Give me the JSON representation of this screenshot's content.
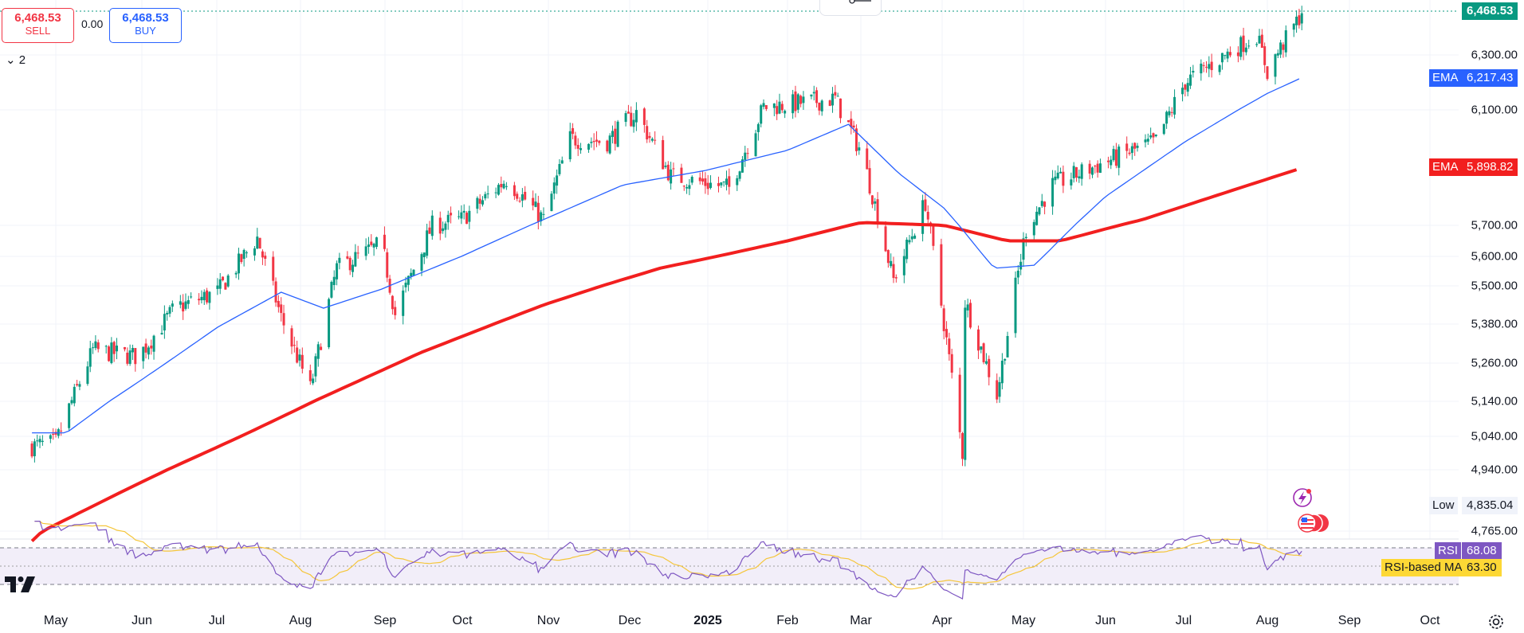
{
  "trade_panel": {
    "sell_price": "6,468.53",
    "sell_label": "SELL",
    "spread": "0.00",
    "buy_price": "6,468.53",
    "buy_label": "BUY",
    "legend_toggle": "2"
  },
  "price_tags": {
    "last_price": "6,468.53",
    "ema_fast_label": "EMA",
    "ema_fast_value": "6,217.43",
    "ema_slow_label": "EMA",
    "ema_slow_value": "5,898.82",
    "low_label": "Low",
    "low_value": "4,835.04",
    "rsi_label": "RSI",
    "rsi_value": "68.08",
    "rsi_ma_label": "RSI-based MA",
    "rsi_ma_value": "63.30"
  },
  "colors": {
    "up": "#089981",
    "down": "#f23645",
    "ema_fast": "#2962ff",
    "ema_slow": "#f21f1f",
    "rsi_line": "#7e57c2",
    "rsi_ma": "#fdd835",
    "rsi_band": "#ede7f6"
  },
  "icons": [
    "crosshair-icon",
    "tradingview-logo-icon",
    "settings-gear-icon",
    "lightning-icon",
    "us-flag-icon"
  ],
  "chart_data": [
    {
      "type": "candlestick",
      "y_axis_ticks": [
        "6,300.00",
        "6,100.00",
        "5,700.00",
        "5,600.00",
        "5,500.00",
        "5,380.00",
        "5,260.00",
        "5,140.00",
        "5,040.00",
        "4,940.00",
        "4,765.00"
      ],
      "x_axis_ticks": [
        "May",
        "Jun",
        "Jul",
        "Aug",
        "Sep",
        "Oct",
        "Nov",
        "Dec",
        "2025",
        "Feb",
        "Mar",
        "Apr",
        "May",
        "Jun",
        "Jul",
        "Aug",
        "Sep",
        "Oct"
      ],
      "ylim": [
        4740,
        6490
      ],
      "series_close_points": [
        {
          "x": "2024-04-22",
          "y": 5010
        },
        {
          "x": "2024-05-01",
          "y": 5020
        },
        {
          "x": "2024-05-15",
          "y": 5300
        },
        {
          "x": "2024-06-01",
          "y": 5280
        },
        {
          "x": "2024-06-15",
          "y": 5430
        },
        {
          "x": "2024-07-01",
          "y": 5480
        },
        {
          "x": "2024-07-16",
          "y": 5660
        },
        {
          "x": "2024-07-25",
          "y": 5400
        },
        {
          "x": "2024-08-05",
          "y": 5180
        },
        {
          "x": "2024-08-15",
          "y": 5560
        },
        {
          "x": "2024-09-01",
          "y": 5640
        },
        {
          "x": "2024-09-06",
          "y": 5410
        },
        {
          "x": "2024-09-20",
          "y": 5700
        },
        {
          "x": "2024-10-01",
          "y": 5720
        },
        {
          "x": "2024-10-18",
          "y": 5860
        },
        {
          "x": "2024-11-01",
          "y": 5720
        },
        {
          "x": "2024-11-11",
          "y": 6000
        },
        {
          "x": "2024-11-25",
          "y": 5990
        },
        {
          "x": "2024-12-06",
          "y": 6090
        },
        {
          "x": "2024-12-19",
          "y": 5870
        },
        {
          "x": "2025-01-10",
          "y": 5830
        },
        {
          "x": "2025-01-23",
          "y": 6110
        },
        {
          "x": "2025-02-19",
          "y": 6140
        },
        {
          "x": "2025-03-01",
          "y": 5950
        },
        {
          "x": "2025-03-13",
          "y": 5520
        },
        {
          "x": "2025-03-25",
          "y": 5780
        },
        {
          "x": "2025-04-08",
          "y": 4990
        },
        {
          "x": "2025-04-09",
          "y": 5450
        },
        {
          "x": "2025-04-21",
          "y": 5160
        },
        {
          "x": "2025-05-02",
          "y": 5690
        },
        {
          "x": "2025-05-12",
          "y": 5840
        },
        {
          "x": "2025-06-01",
          "y": 5920
        },
        {
          "x": "2025-06-20",
          "y": 5990
        },
        {
          "x": "2025-07-01",
          "y": 6200
        },
        {
          "x": "2025-07-28",
          "y": 6380
        },
        {
          "x": "2025-08-01",
          "y": 6240
        },
        {
          "x": "2025-08-14",
          "y": 6468.53
        }
      ],
      "ema_fast_points": [
        {
          "x": "2024-04-22",
          "y": 5050
        },
        {
          "x": "2024-05-05",
          "y": 5050
        },
        {
          "x": "2024-06-01",
          "y": 5200
        },
        {
          "x": "2024-07-01",
          "y": 5370
        },
        {
          "x": "2024-07-25",
          "y": 5480
        },
        {
          "x": "2024-08-10",
          "y": 5430
        },
        {
          "x": "2024-09-01",
          "y": 5490
        },
        {
          "x": "2024-10-01",
          "y": 5600
        },
        {
          "x": "2024-11-01",
          "y": 5720
        },
        {
          "x": "2024-12-01",
          "y": 5840
        },
        {
          "x": "2025-01-01",
          "y": 5890
        },
        {
          "x": "2025-02-01",
          "y": 5960
        },
        {
          "x": "2025-02-24",
          "y": 6050
        },
        {
          "x": "2025-03-15",
          "y": 5880
        },
        {
          "x": "2025-04-01",
          "y": 5760
        },
        {
          "x": "2025-04-20",
          "y": 5560
        },
        {
          "x": "2025-05-05",
          "y": 5570
        },
        {
          "x": "2025-06-01",
          "y": 5800
        },
        {
          "x": "2025-07-01",
          "y": 5990
        },
        {
          "x": "2025-08-01",
          "y": 6160
        },
        {
          "x": "2025-08-14",
          "y": 6217.43
        }
      ],
      "ema_slow_points": [
        {
          "x": "2024-04-22",
          "y": 4750
        },
        {
          "x": "2024-06-01",
          "y": 4900
        },
        {
          "x": "2024-08-01",
          "y": 5120
        },
        {
          "x": "2024-09-15",
          "y": 5290
        },
        {
          "x": "2024-11-01",
          "y": 5440
        },
        {
          "x": "2024-12-15",
          "y": 5560
        },
        {
          "x": "2025-02-01",
          "y": 5650
        },
        {
          "x": "2025-03-01",
          "y": 5710
        },
        {
          "x": "2025-04-01",
          "y": 5700
        },
        {
          "x": "2025-04-25",
          "y": 5650
        },
        {
          "x": "2025-05-15",
          "y": 5650
        },
        {
          "x": "2025-06-15",
          "y": 5720
        },
        {
          "x": "2025-07-15",
          "y": 5810
        },
        {
          "x": "2025-08-14",
          "y": 5898.82
        }
      ]
    },
    {
      "type": "line",
      "series": [
        {
          "name": "RSI",
          "last": 68.08
        },
        {
          "name": "RSI-based MA",
          "last": 63.3
        }
      ]
    }
  ]
}
